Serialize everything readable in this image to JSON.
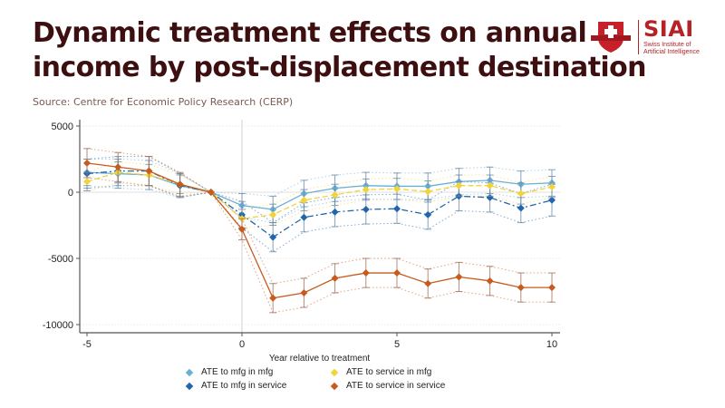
{
  "header": {
    "title_line1": "Dynamic treatment effects on annual",
    "title_line2": "income by post-displacement destination",
    "source": "Source: Centre for Economic Policy Research (CERP)"
  },
  "logo": {
    "icon": "swiss-cross-shield-icon",
    "brand": "SIAI",
    "subtitle": "Swiss Institute of\nArtificial Intelligence",
    "color": "#b42327"
  },
  "chart_data": {
    "type": "line",
    "title": "Dynamic treatment effects on annual income by post-displacement destination",
    "xlabel": "Year relative to treatment",
    "ylabel": "",
    "xlim": [
      -5,
      10
    ],
    "ylim": [
      -10500,
      5500
    ],
    "xticks": [
      -5,
      0,
      5,
      10
    ],
    "xtick_labels": [
      "-5",
      "0",
      "5",
      "10"
    ],
    "yticks": [
      5000,
      0,
      -5000,
      -10000
    ],
    "ytick_labels": [
      "5000",
      "0",
      "-5000",
      "-10000"
    ],
    "grid": true,
    "reference_line_x": 0,
    "legend_position": "bottom",
    "x": [
      -5,
      -4,
      -3,
      -2,
      -1,
      0,
      1,
      2,
      3,
      4,
      5,
      6,
      7,
      8,
      9,
      10
    ],
    "series": [
      {
        "name": "ATE to mfg in mfg",
        "color": "#6baed6",
        "line_style": "solid",
        "values": [
          1500,
          1400,
          1300,
          500,
          0,
          -1000,
          -1300,
          -100,
          300,
          500,
          450,
          450,
          800,
          900,
          600,
          700
        ],
        "ci_halfwidth": [
          1000,
          1100,
          1100,
          900,
          0,
          900,
          1000,
          1000,
          1000,
          1000,
          1000,
          1000,
          1000,
          1000,
          1000,
          1000
        ]
      },
      {
        "name": "ATE to mfg in service",
        "color": "#2166ac",
        "line_style": "dashdot",
        "values": [
          1400,
          1600,
          1600,
          500,
          0,
          -1700,
          -3400,
          -1900,
          -1500,
          -1300,
          -1250,
          -1700,
          -300,
          -400,
          -1200,
          -600
        ],
        "ci_halfwidth": [
          1100,
          1100,
          1100,
          900,
          0,
          1000,
          1100,
          1100,
          1100,
          1100,
          1100,
          1100,
          1100,
          1100,
          1100,
          1200
        ]
      },
      {
        "name": "ATE to service in mfg",
        "color": "#f0d43a",
        "line_style": "dashed",
        "values": [
          800,
          1500,
          1300,
          600,
          0,
          -2000,
          -1700,
          -600,
          -200,
          200,
          250,
          50,
          500,
          500,
          -100,
          400
        ],
        "ci_halfwidth": [
          700,
          800,
          800,
          700,
          0,
          700,
          800,
          800,
          800,
          800,
          800,
          800,
          800,
          800,
          800,
          800
        ]
      },
      {
        "name": "ATE to service in service",
        "color": "#c85a1e",
        "line_style": "solid",
        "values": [
          2200,
          1900,
          1600,
          600,
          0,
          -2800,
          -8000,
          -7600,
          -6500,
          -6100,
          -6100,
          -6900,
          -6400,
          -6700,
          -7200,
          -7200
        ],
        "ci_halfwidth": [
          1100,
          1100,
          1100,
          900,
          0,
          800,
          1100,
          1100,
          1100,
          1100,
          1100,
          1100,
          1100,
          1100,
          1100,
          1100
        ]
      }
    ]
  }
}
